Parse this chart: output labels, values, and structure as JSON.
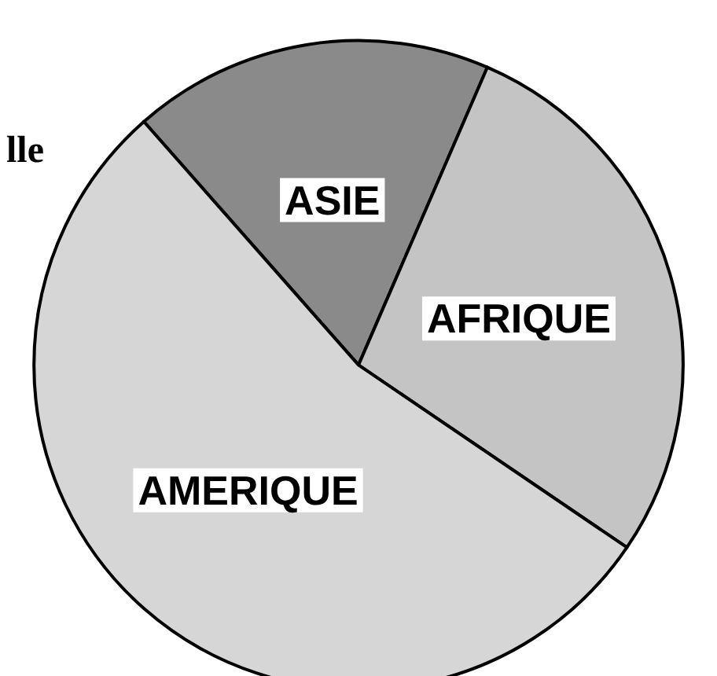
{
  "chart_data": {
    "type": "pie",
    "categories": [
      "ASIE",
      "AFRIQUE",
      "AMERIQUE"
    ],
    "values": [
      18,
      28,
      54
    ],
    "colors": [
      "#8a8a8a",
      "#c4c4c4",
      "#d6d6d6"
    ],
    "annotations": [
      "lle"
    ]
  }
}
